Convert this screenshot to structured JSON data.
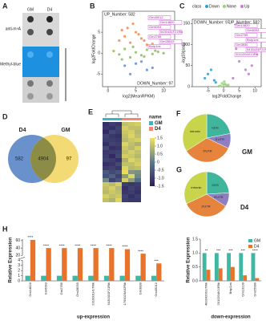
{
  "blot": {
    "panel": "A",
    "columns": [
      "GM",
      "D4"
    ],
    "rows": [
      "anti-m⁶A",
      "Methyl-blue"
    ]
  },
  "chart_data": [
    {
      "type": "scatter",
      "panel": "B",
      "xlabel": "log2(MeanRPKM)",
      "ylabel": "log2FoldChange",
      "annotations": [
        "UP_Number: 582",
        "DOWN_Number: 97"
      ],
      "gene_labels": [
        "Gm45012",
        "Gm14820",
        "Gm6093",
        "5430431F21Rik",
        "Gm2785",
        "Gm28033",
        "Bnip1os"
      ],
      "xlim": [
        -1,
        12
      ],
      "xticks": [
        0,
        5,
        10
      ],
      "ylim": [
        -8,
        10
      ],
      "yticks": [
        -5,
        0,
        5
      ],
      "series": [
        {
          "name": "Up",
          "color": "#f08a4b",
          "x": [
            2,
            3,
            4,
            5,
            6,
            7,
            3.5,
            5.5,
            8,
            4.5,
            2.5,
            6.5
          ],
          "values": [
            3,
            4,
            2.5,
            5,
            3.5,
            2,
            6,
            4.5,
            2.2,
            7,
            5.5,
            3
          ]
        },
        {
          "name": "None",
          "color": "#8fbc5a",
          "x": [
            1,
            2,
            3,
            4,
            5,
            6,
            7,
            8,
            9,
            10,
            2.5,
            4.5,
            6.5,
            8.5
          ],
          "values": [
            0.5,
            -0.3,
            1,
            -1,
            0.2,
            -0.5,
            0.8,
            -0.2,
            0.3,
            0,
            -1.5,
            1.5,
            -0.8,
            0.6
          ]
        },
        {
          "name": "Down",
          "color": "#5b8fd6",
          "x": [
            3,
            5,
            7,
            4,
            6,
            8
          ],
          "values": [
            -3,
            -2.5,
            -4,
            -5,
            -2,
            -3.5
          ]
        }
      ]
    },
    {
      "type": "scatter",
      "panel": "C",
      "xlabel": "log2FoldChange",
      "ylabel": "-log10(padj)",
      "legend_title": "class",
      "annotations": [
        "DOWN_Number: 97",
        "UP_Number: 582"
      ],
      "gene_labels": [
        "Gm14820",
        "Gm6093",
        "Gm2785",
        "Bnip1os",
        "Gm3830",
        "5430431F21Rik",
        "2010204K13Rik"
      ],
      "xlim": [
        -10,
        12
      ],
      "xticks": [
        -5,
        0,
        5,
        10
      ],
      "ylim": [
        0,
        160
      ],
      "yticks": [
        0,
        50,
        100,
        150
      ],
      "series": [
        {
          "name": "Down",
          "color": "#2f9fd0",
          "x": [
            -3,
            -5,
            -2.5,
            -6,
            -4
          ],
          "values": [
            15,
            30,
            10,
            20,
            40
          ]
        },
        {
          "name": "None",
          "color": "#9ccf7e",
          "x": [
            -1,
            0,
            1,
            -0.5,
            0.5,
            -1.5,
            1.5,
            0.2
          ],
          "values": [
            2,
            5,
            3,
            8,
            6,
            1,
            4,
            12
          ]
        },
        {
          "name": "Up",
          "color": "#c678d8",
          "x": [
            3,
            5,
            7,
            4,
            6,
            8,
            9,
            4.5
          ],
          "values": [
            20,
            60,
            40,
            90,
            120,
            30,
            50,
            150
          ]
        }
      ]
    },
    {
      "type": "venn",
      "panel": "D",
      "sets": [
        "D4",
        "GM"
      ],
      "colors": [
        "#4f7fc4",
        "#f2d35c"
      ],
      "overlap_color": "#8c8c47",
      "values": [
        582,
        4904,
        97
      ]
    },
    {
      "type": "heatmap",
      "panel": "E",
      "legend_title": "name",
      "groups": [
        "GM",
        "D4"
      ],
      "group_colors": [
        "#3bb5c4",
        "#f08878"
      ],
      "colorbar_ticks": [
        1.5,
        {
          "value": 1,
          "label": "1.0"
        },
        0.5,
        0,
        -0.5,
        {
          "value": -1,
          "label": "-1.0"
        },
        -1.5
      ],
      "matrix": [
        [
          -1.2,
          -1.0,
          -1.1,
          1.0,
          1.1,
          1.2
        ],
        [
          -1.1,
          -1.2,
          -0.9,
          1.2,
          1.0,
          1.0
        ],
        [
          -1.3,
          -0.8,
          -1.0,
          1.1,
          1.2,
          0.9
        ],
        [
          -0.9,
          -1.1,
          -1.2,
          1.0,
          1.3,
          1.0
        ],
        [
          -1.0,
          -1.0,
          -1.1,
          0.9,
          1.1,
          1.2
        ],
        [
          -1.2,
          -0.9,
          -1.0,
          1.3,
          1.0,
          0.8
        ],
        [
          -0.8,
          -1.2,
          -1.1,
          1.1,
          0.9,
          1.2
        ],
        [
          -1.1,
          -1.0,
          -0.9,
          1.0,
          1.2,
          1.0
        ],
        [
          -1.0,
          -1.3,
          -0.8,
          1.2,
          1.1,
          0.9
        ],
        [
          -0.9,
          -1.0,
          -1.2,
          0.8,
          1.3,
          1.1
        ],
        [
          -1.2,
          -1.1,
          -0.8,
          1.0,
          1.0,
          1.2
        ],
        [
          -1.0,
          -0.9,
          -1.1,
          1.3,
          0.9,
          1.0
        ],
        [
          -0.5,
          -0.8,
          -0.6,
          1.4,
          0.4,
          0.3
        ],
        [
          -0.7,
          -0.4,
          -0.9,
          0.5,
          1.3,
          0.2
        ],
        [
          0.2,
          -0.9,
          -0.6,
          1.2,
          0.5,
          -0.2
        ],
        [
          1.1,
          0.9,
          1.2,
          -1.0,
          -1.1,
          -1.0
        ],
        [
          1.0,
          1.2,
          0.9,
          -1.2,
          -0.9,
          -1.1
        ],
        [
          0.9,
          1.1,
          1.0,
          -1.1,
          -1.0,
          -1.2
        ],
        [
          1.2,
          1.0,
          1.1,
          -0.9,
          -1.2,
          -1.0
        ],
        [
          1.0,
          0.8,
          1.3,
          -1.0,
          -1.1,
          -1.1
        ]
      ]
    },
    {
      "type": "pie",
      "panel": "F",
      "title": "GM",
      "categories": [
        "CDS",
        "5'UTR",
        "3'UTR",
        "intronic"
      ],
      "colors": [
        "#3fb59b",
        "#8e7fc2",
        "#e6843d",
        "#c8d44a"
      ],
      "values": [
        22,
        10,
        34,
        34
      ]
    },
    {
      "type": "pie",
      "panel": "G",
      "title": "D4",
      "categories": [
        "CDS",
        "5'UTR",
        "3'UTR",
        "intronic"
      ],
      "colors": [
        "#3fb59b",
        "#8e7fc2",
        "#e6843d",
        "#c8d44a"
      ],
      "values": [
        24,
        10,
        34,
        32
      ]
    },
    {
      "type": "bar",
      "panel": "H",
      "xlabel": "up-expression",
      "ylabel": "Relative Expression",
      "categories": [
        "Gm14820",
        "Gm6093",
        "Gm2785",
        "Gm28033",
        "2310001H17Rik",
        "5430431F21Rik",
        "1700020A02Rik",
        "Gm3830",
        "Gm45012"
      ],
      "significance": [
        "****",
        "****",
        "****",
        "****",
        "****",
        "****",
        "****",
        "****",
        "***"
      ],
      "ylim": [
        0,
        64
      ],
      "ybreak": [
        4,
        20
      ],
      "yticks": [
        0,
        1,
        2,
        3,
        4,
        20,
        40,
        60
      ],
      "series": [
        {
          "name": "GM",
          "color": "#3fb7a3",
          "values": [
            1,
            1,
            1,
            1,
            1,
            1,
            1,
            1,
            1
          ]
        },
        {
          "name": "D4",
          "color": "#e8742c",
          "values": [
            62,
            40,
            40,
            40,
            40,
            40,
            37,
            25,
            3.4
          ]
        }
      ]
    },
    {
      "type": "bar",
      "xlabel": "down-expression",
      "ylabel": "Relative Expression",
      "categories": [
        "4833420G17Rik",
        "2010204K13Rik",
        "Bnip1os",
        "Gm13139",
        "Gm25089"
      ],
      "significance": [
        "**",
        "***",
        "***",
        "***",
        "****"
      ],
      "ylim": [
        0,
        1.5
      ],
      "yticks": [
        {
          "value": 0,
          "label": "0.0"
        },
        0.5,
        {
          "value": 1,
          "label": "1.0"
        },
        1.5
      ],
      "series": [
        {
          "name": "GM",
          "color": "#3fb7a3",
          "values": [
            1,
            1,
            1,
            1,
            1
          ]
        },
        {
          "name": "D4",
          "color": "#e8742c",
          "values": [
            0.4,
            0.45,
            0.5,
            0.2,
            0.1
          ]
        }
      ]
    }
  ]
}
